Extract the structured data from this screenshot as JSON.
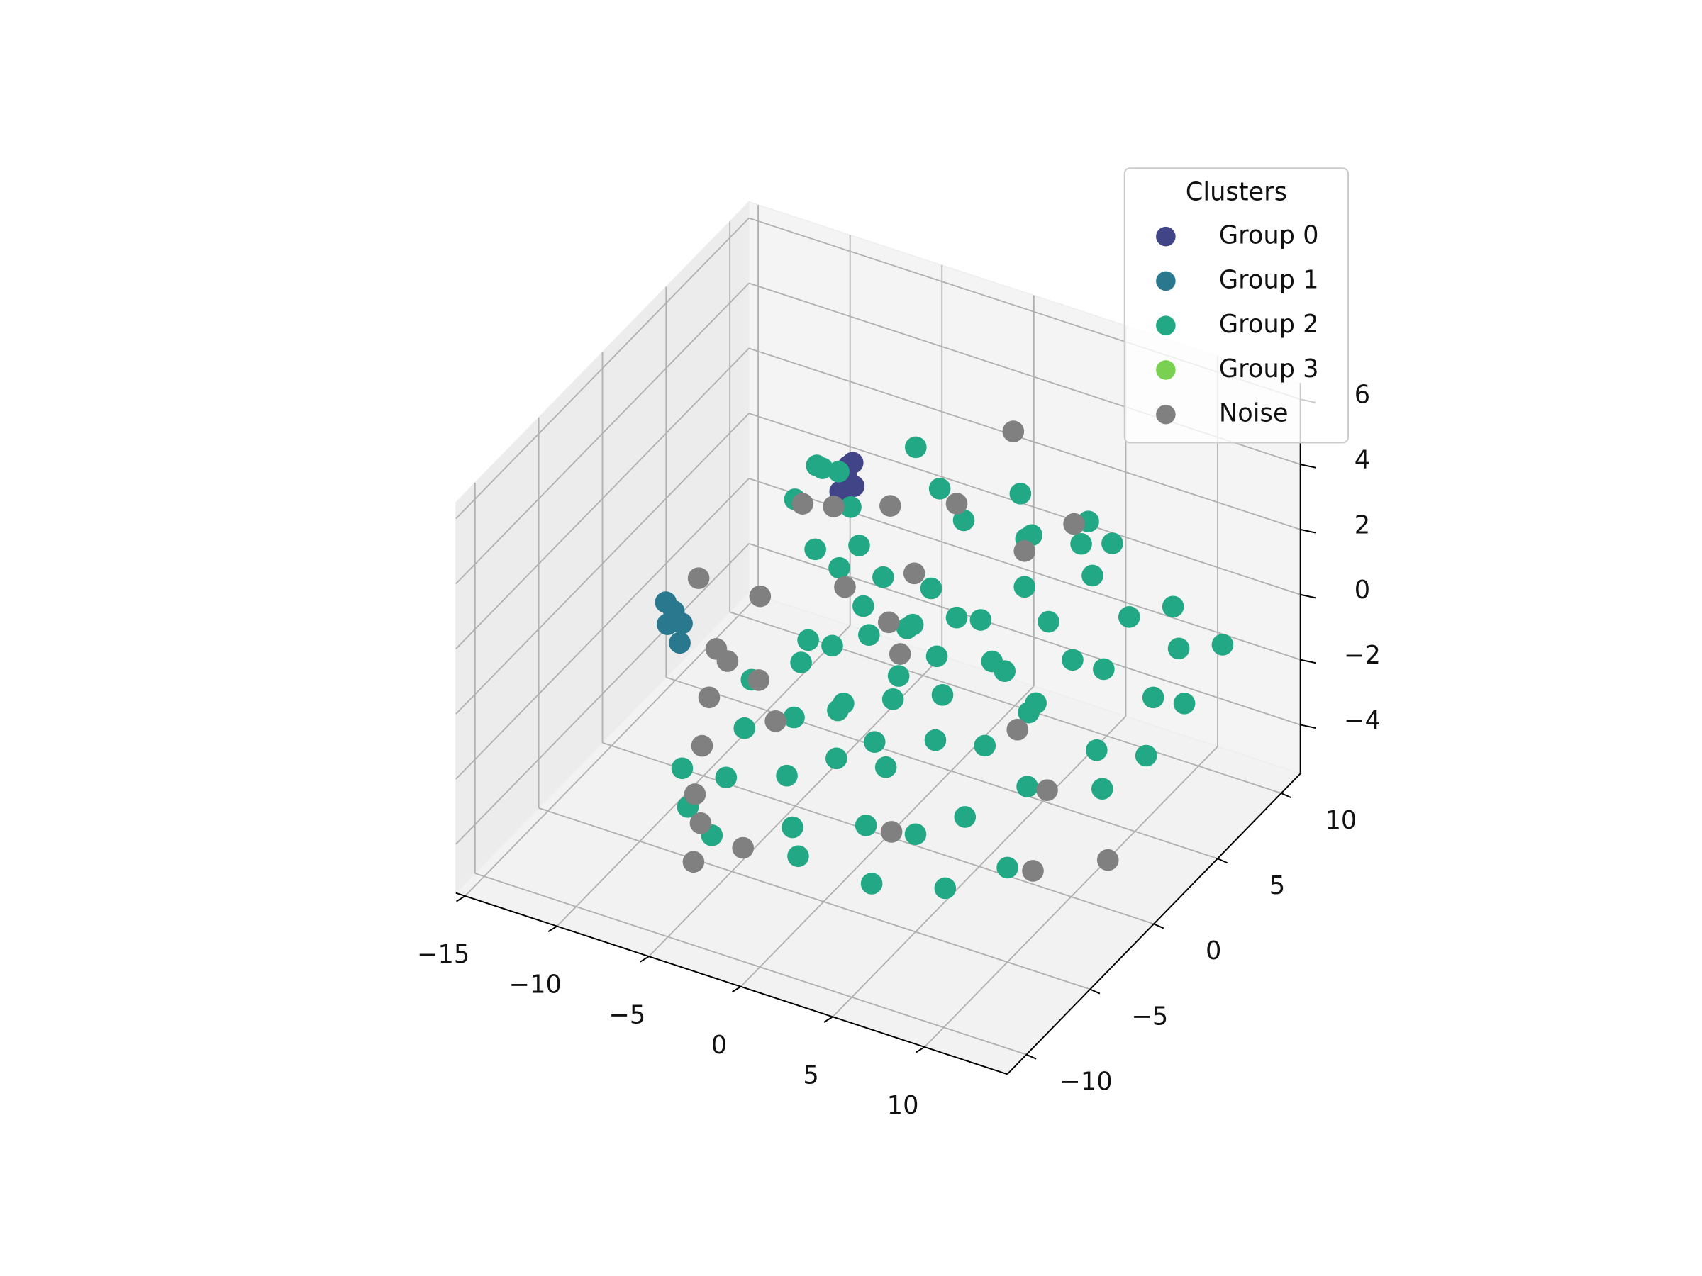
{
  "chart_data": {
    "type": "scatter3d",
    "legend_title": "Clusters",
    "legend": "upper right",
    "grid": true,
    "xlim": [
      -15.5,
      14.5
    ],
    "ylim": [
      -11.5,
      11.5
    ],
    "zlim": [
      -5.5,
      6.5
    ],
    "xticks": [
      {
        "value": -15,
        "label": "−15"
      },
      {
        "value": -10,
        "label": "−10"
      },
      {
        "value": -5,
        "label": "−5"
      },
      0,
      5,
      10
    ],
    "yticks": [
      {
        "value": -10,
        "label": "−10"
      },
      {
        "value": -5,
        "label": "−5"
      },
      0,
      5,
      10
    ],
    "zticks": [
      {
        "value": -4,
        "label": "−4"
      },
      {
        "value": -2,
        "label": "−2"
      },
      0,
      2,
      4,
      6
    ],
    "series": [
      {
        "name": "Group 0",
        "color": "#414487",
        "x": [
          -5,
          -4.8,
          -5.2,
          -4.6,
          -5.1
        ],
        "y": [
          4,
          4.2,
          3.8,
          4,
          4.3
        ],
        "z": [
          3,
          3.4,
          2.6,
          2.8,
          3.2
        ]
      },
      {
        "name": "Group 1",
        "color": "#2a788e",
        "x": [
          -13,
          -13.3,
          -12.7,
          -13,
          -12.4
        ],
        "y": [
          2,
          1.8,
          2.2,
          1.5,
          1.6
        ],
        "z": [
          -1.8,
          -1.5,
          -2.2,
          -2,
          -2.5
        ]
      },
      {
        "name": "Group 2",
        "color": "#22a884",
        "x": [
          -8,
          -7.5,
          -7,
          -6.5,
          -7.8,
          -6,
          -5,
          -4,
          -3,
          -2,
          -1,
          0,
          1,
          2,
          3,
          4,
          5,
          6,
          7,
          8,
          -6,
          -5,
          -4,
          -3,
          -2,
          -1,
          0,
          1,
          2,
          3,
          4,
          5,
          6,
          7,
          8,
          9,
          10,
          -7,
          -6,
          -4,
          9,
          10,
          11,
          12,
          11,
          12,
          10,
          9,
          12,
          11,
          3,
          5,
          6,
          2,
          7,
          0,
          -2,
          -4,
          1,
          4,
          -3,
          -1,
          1,
          3,
          5,
          -5,
          0,
          2,
          -2,
          6,
          -6,
          -1,
          0,
          4
        ],
        "y": [
          6,
          7,
          5,
          6.5,
          4,
          3,
          5,
          2,
          4,
          1,
          3,
          2,
          4,
          1,
          3,
          5,
          2,
          4,
          1,
          3,
          -2,
          -4,
          -1,
          -3,
          -5,
          -2,
          -4,
          -1,
          -3,
          -6,
          -2,
          -5,
          -1,
          -4,
          -7,
          -2,
          -5,
          -6,
          -7,
          -8,
          6,
          8,
          7,
          9,
          5,
          3,
          2,
          4,
          6,
          1,
          7,
          8,
          9,
          8,
          6,
          6,
          7,
          8,
          9,
          10,
          0,
          0,
          2,
          0,
          1,
          1,
          -1,
          -2,
          -1,
          3,
          -4,
          -6,
          -7,
          -7
        ],
        "z": [
          2,
          1.5,
          2.5,
          0.8,
          1.8,
          1,
          0.5,
          1.2,
          0.3,
          0.8,
          -0.5,
          0.2,
          -0.2,
          0,
          0.5,
          0.9,
          -0.3,
          0.6,
          -0.8,
          0.2,
          -1,
          -1.5,
          -0.5,
          -1.2,
          -2,
          -0.8,
          -1.5,
          -0.7,
          -1.8,
          -2.2,
          -1,
          -2.5,
          -1.2,
          -2,
          -2.8,
          -1.5,
          -2.6,
          -2.3,
          -2.9,
          -3,
          0.5,
          0.2,
          -0.5,
          -1,
          -1.2,
          -2,
          -1.8,
          -0.3,
          -1.6,
          -2.4,
          1.5,
          1.2,
          1,
          0.8,
          1.4,
          1.8,
          2,
          2.5,
          1.6,
          0.9,
          -0.2,
          0.5,
          1.5,
          -0.6,
          0.4,
          -0.8,
          -2.2,
          0.6,
          -1.6,
          -1.5,
          -3.2,
          -3,
          -3.3,
          -3.4
        ]
      },
      {
        "name": "Group 3",
        "color": "#7ad151",
        "x": [],
        "y": [],
        "z": []
      },
      {
        "name": "Noise",
        "color": "#808080",
        "x": [
          -9,
          -10,
          -9,
          -8,
          -7,
          -6,
          -5,
          -3,
          -6,
          -5,
          -3,
          -2,
          0,
          2,
          1,
          4,
          5,
          8,
          10,
          12,
          -4,
          -7,
          -12,
          -4,
          -2,
          3,
          6,
          -8
        ],
        "y": [
          3,
          1,
          -1,
          -3,
          -5,
          -6,
          -8,
          -7,
          2,
          3,
          1,
          3,
          1,
          7,
          4,
          5,
          3,
          1,
          -3,
          0,
          -3,
          0,
          2.5,
          6,
          5,
          -4,
          6,
          -1
        ],
        "z": [
          -1,
          -2,
          -2.5,
          -3,
          -3.5,
          -3.8,
          -4,
          -3.6,
          2.8,
          2.5,
          1.2,
          -0.5,
          -0.3,
          4.5,
          3.3,
          2,
          -2.5,
          -3,
          -3.5,
          -4,
          -1.5,
          -2,
          -0.8,
          1.5,
          0.2,
          -3.2,
          2.8,
          -1.2
        ]
      }
    ]
  }
}
